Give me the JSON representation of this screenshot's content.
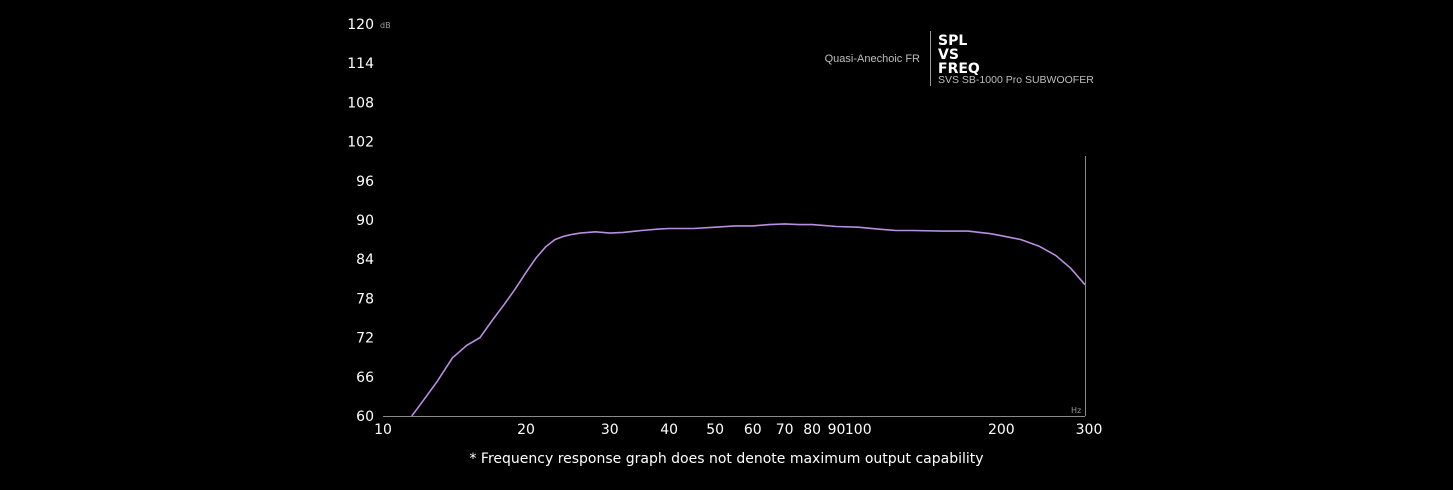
{
  "chart_data": {
    "type": "line",
    "title": [
      "SPL",
      "VS",
      "FREQ"
    ],
    "subtitle": "SVS SB-1000 Pro SUBWOOFER",
    "legend_label": "Quasi-Anechoic FR",
    "y_unit": "dB",
    "x_unit": "Hz",
    "x_scale": "log",
    "xlim": [
      10,
      300
    ],
    "ylim": [
      60,
      120
    ],
    "y_ticks": [
      60,
      66,
      72,
      78,
      84,
      90,
      96,
      102,
      108,
      114,
      120
    ],
    "x_ticks": [
      10,
      20,
      30,
      40,
      50,
      60,
      70,
      80,
      90,
      100,
      200,
      300
    ],
    "x_tick_labels": [
      "10",
      "20",
      "30",
      "40",
      "50",
      "60",
      "70",
      "80",
      "90",
      "100",
      "200",
      "300"
    ],
    "grid": false,
    "line_color": "#b98ee0",
    "series": [
      {
        "x": [
          11.5,
          12,
          13,
          14,
          15,
          16,
          17,
          18,
          19,
          20,
          21,
          22,
          23,
          24,
          25,
          26,
          28,
          30,
          32,
          35,
          38,
          40,
          45,
          50,
          55,
          60,
          65,
          70,
          75,
          80,
          90,
          100,
          110,
          120,
          130,
          150,
          170,
          190,
          200,
          220,
          240,
          260,
          280,
          300
        ],
        "y": [
          60.0,
          61.8,
          65.3,
          68.9,
          70.8,
          72.0,
          74.7,
          77.1,
          79.5,
          82.0,
          84.2,
          85.9,
          87.0,
          87.5,
          87.8,
          88.0,
          88.2,
          88.0,
          88.1,
          88.4,
          88.6,
          88.7,
          88.7,
          88.9,
          89.1,
          89.1,
          89.3,
          89.4,
          89.3,
          89.3,
          89.0,
          88.9,
          88.6,
          88.4,
          88.4,
          88.3,
          88.3,
          87.9,
          87.6,
          87.0,
          86.0,
          84.6,
          82.6,
          80.1
        ]
      }
    ]
  },
  "footnote": "* Frequency response graph does not denote maximum output capability"
}
